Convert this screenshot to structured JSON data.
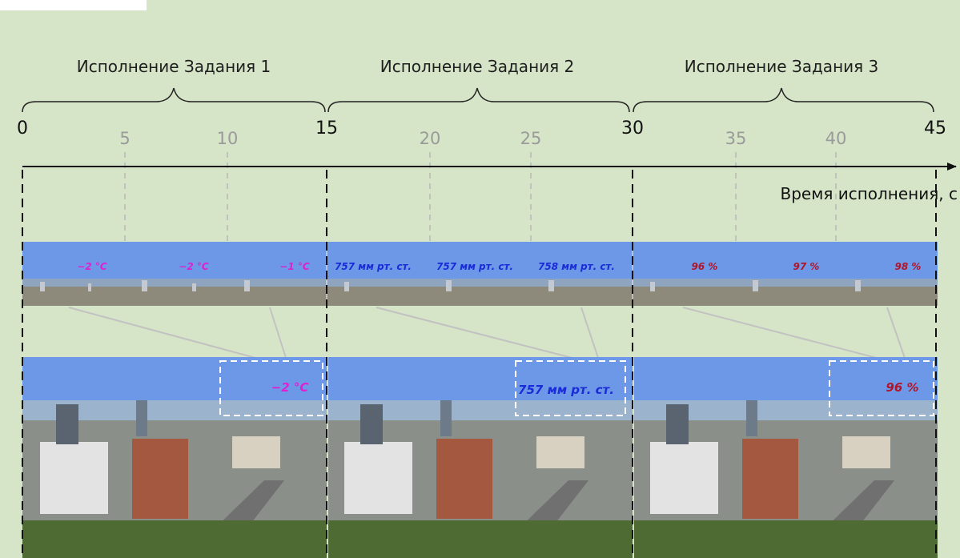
{
  "tasks": [
    {
      "label": "Исполнение Задания 1"
    },
    {
      "label": "Исполнение Задания 2"
    },
    {
      "label": "Исполнение Задания 3"
    }
  ],
  "axis": {
    "title": "Время исполнения, с",
    "major_ticks": [
      "0",
      "15",
      "30",
      "45"
    ],
    "minor_ticks": [
      "5",
      "10",
      "20",
      "25",
      "35",
      "40"
    ]
  },
  "strip_readings": [
    {
      "text": "−2 °C",
      "color": "#e020d0"
    },
    {
      "text": "−2 °C",
      "color": "#e020d0"
    },
    {
      "text": "−1 °C",
      "color": "#e020d0"
    },
    {
      "text": "757 мм рт. ст.",
      "color": "#1a2bd8"
    },
    {
      "text": "757 мм рт. ст.",
      "color": "#1a2bd8"
    },
    {
      "text": "758 мм рт. ст.",
      "color": "#1a2bd8"
    },
    {
      "text": "96 %",
      "color": "#b0152a"
    },
    {
      "text": "97 %",
      "color": "#b0152a"
    },
    {
      "text": "98 %",
      "color": "#b0152a"
    }
  ],
  "big_readings": [
    {
      "text": "−2 °C",
      "color": "#e020d0"
    },
    {
      "text": "757 мм рт. ст.",
      "color": "#1a2bd8"
    },
    {
      "text": "96 %",
      "color": "#b0152a"
    }
  ],
  "colors": {
    "background": "#d6e4c7",
    "sky": "#6d98e8",
    "dashed_divider": "#111111",
    "grid": "#b8b8b8"
  }
}
